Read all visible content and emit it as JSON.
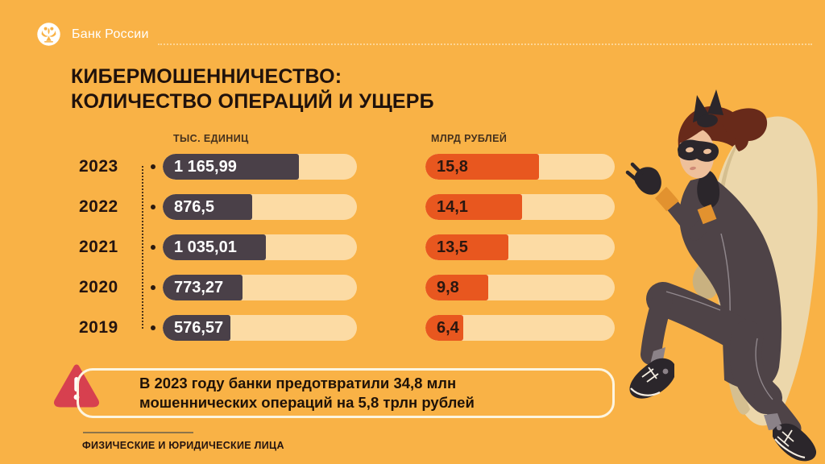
{
  "brand": {
    "name": "Банк России",
    "logo": "bank-of-russia-eagle"
  },
  "title": {
    "line1": "КИБЕРМОШЕННИЧЕСТВО:",
    "line2": "КОЛИЧЕСТВО ОПЕРАЦИЙ И УЩЕРБ"
  },
  "chart_data": {
    "type": "bar",
    "orientation": "horizontal",
    "categories": [
      "2023",
      "2022",
      "2021",
      "2020",
      "2019"
    ],
    "series": [
      {
        "name": "ТЫС. ЕДИНИЦ",
        "values": [
          1165.99,
          876.5,
          1035.01,
          773.27,
          576.57
        ],
        "value_labels": [
          "1 165,99",
          "876,5",
          "1 035,01",
          "773,27",
          "576,57"
        ],
        "fill_pct": [
          70,
          46,
          53,
          41,
          35
        ],
        "bar_color": "#4a4048",
        "label_color": "#ffffff"
      },
      {
        "name": "МЛРД РУБЛЕЙ",
        "values": [
          15.8,
          14.1,
          13.5,
          9.8,
          6.4
        ],
        "value_labels": [
          "15,8",
          "14,1",
          "13,5",
          "9,8",
          "6,4"
        ],
        "fill_pct": [
          60,
          51,
          44,
          33,
          20
        ],
        "bar_color": "#e8571f",
        "label_color": "#2a1710"
      }
    ],
    "track_color": "#fcdba4",
    "grid": false,
    "legend_position": "column-headers"
  },
  "callout": {
    "icon": "warning-triangle-icon",
    "line1": "В 2023 году банки предотвратили 34,8 млн",
    "line2": "мошеннических операций на 5,8 трлн рублей"
  },
  "footer": {
    "label": "ФИЗИЧЕСКИЕ И ЮРИДИЧЕСКИЕ ЛИЦА"
  },
  "illustration": {
    "name": "masked-thief-with-money-bag"
  },
  "colors": {
    "background": "#f9b246",
    "title_text": "#20120c",
    "dark_bar": "#4a4048",
    "orange_bar": "#e8571f",
    "track": "#fcdba4",
    "alert_red": "#d7404f"
  }
}
